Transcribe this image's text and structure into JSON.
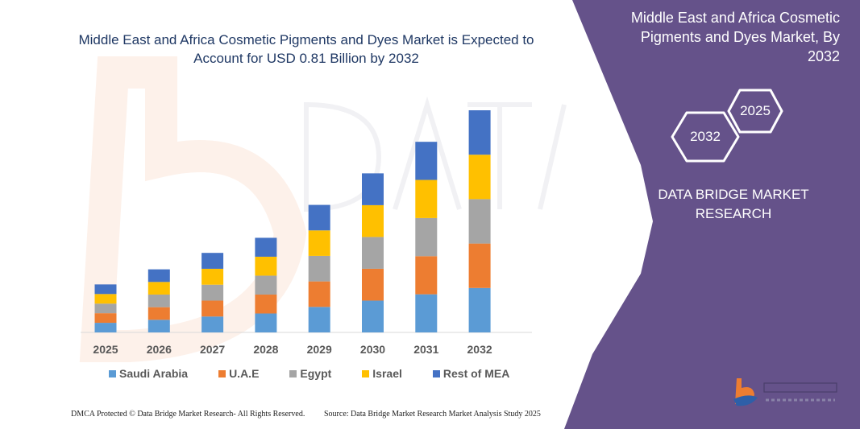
{
  "header": {
    "title": "Middle East and Africa Cosmetic Pigments and Dyes Market is Expected to Account for USD 0.81 Billion by 2032"
  },
  "side_panel": {
    "title": "Middle East and Africa Cosmetic Pigments and Dyes Market, By 2032",
    "hex_start": "2025",
    "hex_end": "2032",
    "brand": "DATA BRIDGE MARKET RESEARCH",
    "logo_text": "DATA BRIDGE MARKET RESEARCH",
    "color": "#65528a"
  },
  "footer": {
    "copyright": "DMCA Protected © Data Bridge Market Research-  All Rights Reserved.",
    "source": "Source: Data Bridge Market Research  Market Analysis Study 2025"
  },
  "chart_data": {
    "type": "bar",
    "stacked": true,
    "categories": [
      "2025",
      "2026",
      "2027",
      "2028",
      "2029",
      "2030",
      "2031",
      "2032"
    ],
    "series": [
      {
        "name": "Saudi Arabia",
        "color": "#5b9bd5",
        "values": [
          0.035,
          0.046,
          0.058,
          0.069,
          0.093,
          0.116,
          0.139,
          0.162
        ]
      },
      {
        "name": "U.A.E",
        "color": "#ed7d31",
        "values": [
          0.035,
          0.046,
          0.058,
          0.069,
          0.093,
          0.116,
          0.139,
          0.162
        ]
      },
      {
        "name": "Egypt",
        "color": "#a5a5a5",
        "values": [
          0.035,
          0.046,
          0.058,
          0.069,
          0.093,
          0.116,
          0.139,
          0.162
        ]
      },
      {
        "name": "Israel",
        "color": "#ffc000",
        "values": [
          0.035,
          0.046,
          0.058,
          0.069,
          0.093,
          0.116,
          0.139,
          0.162
        ]
      },
      {
        "name": "Rest of MEA",
        "color": "#4472c4",
        "values": [
          0.035,
          0.046,
          0.058,
          0.069,
          0.093,
          0.116,
          0.139,
          0.162
        ]
      }
    ],
    "ylim": [
      0,
      0.81
    ],
    "grid": false,
    "legend": "bottom"
  }
}
